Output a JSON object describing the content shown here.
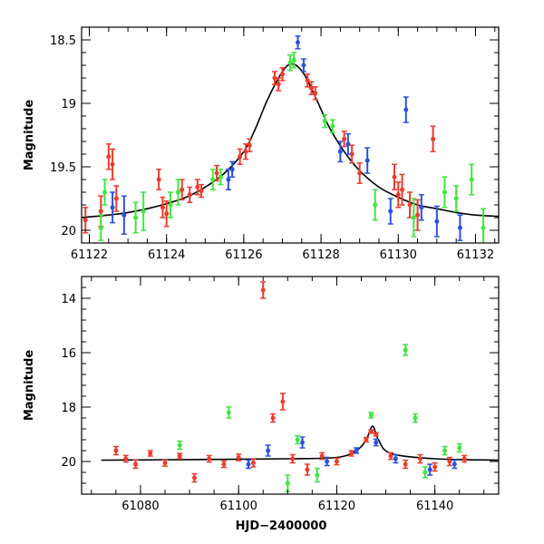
{
  "chart_data": [
    {
      "type": "scatter",
      "title": "",
      "xlabel": "",
      "ylabel": "Magnitude",
      "xlim": [
        61121.8,
        61132.6
      ],
      "ylim": [
        20.1,
        18.4
      ],
      "y_inverted": true,
      "grid": false,
      "x_ticks": [
        61122,
        61124,
        61126,
        61128,
        61130,
        61132
      ],
      "y_ticks": [
        18.5,
        19,
        19.5,
        20
      ],
      "y_tick_labels": [
        "18.5",
        "19",
        "19.5",
        "20"
      ],
      "model_curve": {
        "name": "fit",
        "color": "#000000",
        "x": [
          61121.8,
          61122.5,
          61123,
          61123.5,
          61124,
          61124.5,
          61125,
          61125.5,
          61126,
          61126.3,
          61126.6,
          61126.9,
          61127.1,
          61127.25,
          61127.4,
          61127.6,
          61127.9,
          61128.2,
          61128.6,
          61129,
          61129.5,
          61130,
          61130.5,
          61131,
          61131.5,
          61132,
          61132.6
        ],
        "y": [
          19.9,
          19.88,
          19.86,
          19.83,
          19.79,
          19.74,
          19.66,
          19.55,
          19.38,
          19.2,
          18.98,
          18.8,
          18.71,
          18.69,
          18.71,
          18.79,
          18.98,
          19.18,
          19.38,
          19.53,
          19.66,
          19.74,
          19.8,
          19.83,
          19.86,
          19.88,
          19.89
        ]
      },
      "series": [
        {
          "name": "red",
          "color": "#ee3b2d",
          "points": [
            {
              "x": 61121.9,
              "y": 19.92,
              "err": 0.1
            },
            {
              "x": 61122.3,
              "y": 19.85,
              "err": 0.12
            },
            {
              "x": 61122.5,
              "y": 19.42,
              "err": 0.1
            },
            {
              "x": 61122.6,
              "y": 19.48,
              "err": 0.12
            },
            {
              "x": 61122.7,
              "y": 19.75,
              "err": 0.1
            },
            {
              "x": 61123.8,
              "y": 19.6,
              "err": 0.08
            },
            {
              "x": 61123.9,
              "y": 19.82,
              "err": 0.08
            },
            {
              "x": 61124.0,
              "y": 19.87,
              "err": 0.1
            },
            {
              "x": 61124.4,
              "y": 19.68,
              "err": 0.08
            },
            {
              "x": 61124.6,
              "y": 19.72,
              "err": 0.06
            },
            {
              "x": 61124.8,
              "y": 19.66,
              "err": 0.06
            },
            {
              "x": 61124.9,
              "y": 19.69,
              "err": 0.05
            },
            {
              "x": 61125.3,
              "y": 19.55,
              "err": 0.06
            },
            {
              "x": 61125.9,
              "y": 19.42,
              "err": 0.06
            },
            {
              "x": 61126.05,
              "y": 19.38,
              "err": 0.06
            },
            {
              "x": 61126.15,
              "y": 19.33,
              "err": 0.05
            },
            {
              "x": 61126.8,
              "y": 18.8,
              "err": 0.05
            },
            {
              "x": 61126.9,
              "y": 18.85,
              "err": 0.05
            },
            {
              "x": 61127.0,
              "y": 18.77,
              "err": 0.05
            },
            {
              "x": 61127.65,
              "y": 18.82,
              "err": 0.05
            },
            {
              "x": 61127.75,
              "y": 18.88,
              "err": 0.05
            },
            {
              "x": 61127.85,
              "y": 18.92,
              "err": 0.05
            },
            {
              "x": 61128.6,
              "y": 19.28,
              "err": 0.06
            },
            {
              "x": 61128.8,
              "y": 19.4,
              "err": 0.07
            },
            {
              "x": 61129.0,
              "y": 19.55,
              "err": 0.08
            },
            {
              "x": 61129.9,
              "y": 19.58,
              "err": 0.1
            },
            {
              "x": 61130.0,
              "y": 19.72,
              "err": 0.1
            },
            {
              "x": 61130.1,
              "y": 19.68,
              "err": 0.12
            },
            {
              "x": 61130.3,
              "y": 19.8,
              "err": 0.1
            },
            {
              "x": 61130.5,
              "y": 19.88,
              "err": 0.12
            },
            {
              "x": 61130.9,
              "y": 19.28,
              "err": 0.1
            }
          ]
        },
        {
          "name": "green",
          "color": "#3ee83e",
          "points": [
            {
              "x": 61122.3,
              "y": 19.98,
              "err": 0.1
            },
            {
              "x": 61122.4,
              "y": 19.7,
              "err": 0.1
            },
            {
              "x": 61123.2,
              "y": 19.9,
              "err": 0.12
            },
            {
              "x": 61123.4,
              "y": 19.85,
              "err": 0.15
            },
            {
              "x": 61124.1,
              "y": 19.8,
              "err": 0.1
            },
            {
              "x": 61124.3,
              "y": 19.7,
              "err": 0.1
            },
            {
              "x": 61125.2,
              "y": 19.6,
              "err": 0.08
            },
            {
              "x": 61125.4,
              "y": 19.58,
              "err": 0.06
            },
            {
              "x": 61127.2,
              "y": 18.68,
              "err": 0.06
            },
            {
              "x": 61127.3,
              "y": 18.66,
              "err": 0.06
            },
            {
              "x": 61128.1,
              "y": 19.14,
              "err": 0.05
            },
            {
              "x": 61128.3,
              "y": 19.18,
              "err": 0.05
            },
            {
              "x": 61129.4,
              "y": 19.8,
              "err": 0.12
            },
            {
              "x": 61130.4,
              "y": 19.9,
              "err": 0.15
            },
            {
              "x": 61131.2,
              "y": 19.7,
              "err": 0.12
            },
            {
              "x": 61131.5,
              "y": 19.75,
              "err": 0.1
            },
            {
              "x": 61131.9,
              "y": 19.6,
              "err": 0.12
            },
            {
              "x": 61132.2,
              "y": 19.98,
              "err": 0.15
            }
          ]
        },
        {
          "name": "blue",
          "color": "#2a52e0",
          "points": [
            {
              "x": 61122.6,
              "y": 19.82,
              "err": 0.12
            },
            {
              "x": 61122.9,
              "y": 19.88,
              "err": 0.15
            },
            {
              "x": 61125.6,
              "y": 19.6,
              "err": 0.08
            },
            {
              "x": 61125.7,
              "y": 19.52,
              "err": 0.06
            },
            {
              "x": 61127.4,
              "y": 18.52,
              "err": 0.05
            },
            {
              "x": 61127.55,
              "y": 18.7,
              "err": 0.05
            },
            {
              "x": 61128.5,
              "y": 19.38,
              "err": 0.08
            },
            {
              "x": 61128.7,
              "y": 19.32,
              "err": 0.08
            },
            {
              "x": 61129.2,
              "y": 19.45,
              "err": 0.1
            },
            {
              "x": 61129.8,
              "y": 19.85,
              "err": 0.1
            },
            {
              "x": 61130.2,
              "y": 19.05,
              "err": 0.1
            },
            {
              "x": 61130.6,
              "y": 19.82,
              "err": 0.1
            },
            {
              "x": 61131.0,
              "y": 19.93,
              "err": 0.12
            },
            {
              "x": 61131.6,
              "y": 19.98,
              "err": 0.1
            }
          ]
        }
      ]
    },
    {
      "type": "scatter",
      "title": "",
      "xlabel": "HJD−2400000",
      "ylabel": "Magnitude",
      "xlim": [
        61068,
        61153
      ],
      "ylim": [
        21.2,
        13.2
      ],
      "y_inverted": true,
      "grid": false,
      "x_ticks": [
        61080,
        61100,
        61120,
        61140
      ],
      "y_ticks": [
        14,
        16,
        18,
        20
      ],
      "y_tick_labels": [
        "14",
        "16",
        "18",
        "20"
      ],
      "model_curve": {
        "name": "fit",
        "color": "#000000",
        "x": [
          61072,
          61090,
          61110,
          61120,
          61124,
          61126,
          61127.3,
          61128.5,
          61131,
          61140,
          61153
        ],
        "y": [
          19.95,
          19.93,
          19.9,
          19.85,
          19.6,
          19.2,
          18.7,
          19.2,
          19.7,
          19.9,
          19.95
        ]
      },
      "series": [
        {
          "name": "red",
          "color": "#ee3b2d",
          "points": [
            {
              "x": 61075,
              "y": 19.6,
              "err": 0.15
            },
            {
              "x": 61077,
              "y": 19.9,
              "err": 0.12
            },
            {
              "x": 61079,
              "y": 20.1,
              "err": 0.15
            },
            {
              "x": 61082,
              "y": 19.7,
              "err": 0.1
            },
            {
              "x": 61085,
              "y": 20.05,
              "err": 0.12
            },
            {
              "x": 61088,
              "y": 19.8,
              "err": 0.1
            },
            {
              "x": 61091,
              "y": 20.6,
              "err": 0.15
            },
            {
              "x": 61094,
              "y": 19.9,
              "err": 0.12
            },
            {
              "x": 61097,
              "y": 20.1,
              "err": 0.12
            },
            {
              "x": 61100,
              "y": 19.85,
              "err": 0.12
            },
            {
              "x": 61103,
              "y": 20.05,
              "err": 0.15
            },
            {
              "x": 61105,
              "y": 13.7,
              "err": 0.3
            },
            {
              "x": 61107,
              "y": 18.4,
              "err": 0.15
            },
            {
              "x": 61109,
              "y": 17.8,
              "err": 0.3
            },
            {
              "x": 61111,
              "y": 19.9,
              "err": 0.15
            },
            {
              "x": 61114,
              "y": 20.3,
              "err": 0.2
            },
            {
              "x": 61117,
              "y": 19.8,
              "err": 0.12
            },
            {
              "x": 61120,
              "y": 20.0,
              "err": 0.12
            },
            {
              "x": 61123,
              "y": 19.7,
              "err": 0.1
            },
            {
              "x": 61126,
              "y": 19.2,
              "err": 0.08
            },
            {
              "x": 61127,
              "y": 18.9,
              "err": 0.06
            },
            {
              "x": 61128,
              "y": 19.0,
              "err": 0.06
            },
            {
              "x": 61131,
              "y": 19.8,
              "err": 0.12
            },
            {
              "x": 61134,
              "y": 20.1,
              "err": 0.15
            },
            {
              "x": 61137,
              "y": 19.9,
              "err": 0.15
            },
            {
              "x": 61140,
              "y": 20.2,
              "err": 0.15
            },
            {
              "x": 61143,
              "y": 20.0,
              "err": 0.15
            },
            {
              "x": 61146,
              "y": 19.9,
              "err": 0.12
            }
          ]
        },
        {
          "name": "green",
          "color": "#3ee83e",
          "points": [
            {
              "x": 61088,
              "y": 19.4,
              "err": 0.15
            },
            {
              "x": 61098,
              "y": 18.2,
              "err": 0.2
            },
            {
              "x": 61110,
              "y": 20.8,
              "err": 0.3
            },
            {
              "x": 61112,
              "y": 19.2,
              "err": 0.15
            },
            {
              "x": 61116,
              "y": 20.5,
              "err": 0.25
            },
            {
              "x": 61127,
              "y": 18.3,
              "err": 0.1
            },
            {
              "x": 61134,
              "y": 15.9,
              "err": 0.2
            },
            {
              "x": 61136,
              "y": 18.4,
              "err": 0.15
            },
            {
              "x": 61138,
              "y": 20.4,
              "err": 0.2
            },
            {
              "x": 61142,
              "y": 19.6,
              "err": 0.15
            },
            {
              "x": 61145,
              "y": 19.5,
              "err": 0.15
            }
          ]
        },
        {
          "name": "blue",
          "color": "#2a52e0",
          "points": [
            {
              "x": 61102,
              "y": 20.1,
              "err": 0.15
            },
            {
              "x": 61106,
              "y": 19.6,
              "err": 0.2
            },
            {
              "x": 61113,
              "y": 19.3,
              "err": 0.2
            },
            {
              "x": 61118,
              "y": 20.0,
              "err": 0.15
            },
            {
              "x": 61124,
              "y": 19.6,
              "err": 0.1
            },
            {
              "x": 61128,
              "y": 19.3,
              "err": 0.12
            },
            {
              "x": 61132,
              "y": 19.9,
              "err": 0.15
            },
            {
              "x": 61139,
              "y": 20.3,
              "err": 0.2
            },
            {
              "x": 61144,
              "y": 20.1,
              "err": 0.15
            }
          ]
        }
      ]
    }
  ]
}
